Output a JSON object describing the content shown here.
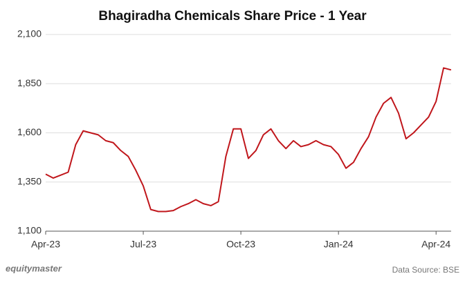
{
  "chart_data": {
    "type": "line",
    "title": "Bhagiradha Chemicals Share Price - 1 Year",
    "categories": [
      "Apr-23",
      null,
      null,
      null,
      null,
      null,
      null,
      null,
      null,
      null,
      null,
      null,
      null,
      "Jul-23",
      null,
      null,
      null,
      null,
      null,
      null,
      null,
      null,
      null,
      null,
      null,
      null,
      "Oct-23",
      null,
      null,
      null,
      null,
      null,
      null,
      null,
      null,
      null,
      null,
      null,
      null,
      "Jan-24",
      null,
      null,
      null,
      null,
      null,
      null,
      null,
      null,
      null,
      null,
      null,
      null,
      "Apr-24",
      null,
      null
    ],
    "series": [
      {
        "name": "Share Price",
        "color": "#c0161b",
        "values": [
          1390,
          1370,
          1385,
          1400,
          1540,
          1610,
          1600,
          1590,
          1560,
          1550,
          1510,
          1480,
          1410,
          1330,
          1210,
          1200,
          1200,
          1205,
          1225,
          1240,
          1260,
          1240,
          1230,
          1250,
          1480,
          1620,
          1620,
          1470,
          1510,
          1590,
          1620,
          1560,
          1520,
          1560,
          1530,
          1540,
          1560,
          1540,
          1530,
          1490,
          1420,
          1450,
          1520,
          1580,
          1680,
          1750,
          1780,
          1700,
          1570,
          1600,
          1640,
          1680,
          1760,
          1930,
          1920
        ]
      }
    ],
    "ylim": [
      1100,
      2100
    ],
    "yticks": [
      {
        "value": 1100,
        "label": "1,100"
      },
      {
        "value": 1350,
        "label": "1,350"
      },
      {
        "value": 1600,
        "label": "1,600"
      },
      {
        "value": 1850,
        "label": "1,850"
      },
      {
        "value": 2100,
        "label": "2,100"
      }
    ],
    "grid": true,
    "brand": "equitymaster",
    "source": "Data Source: BSE"
  }
}
